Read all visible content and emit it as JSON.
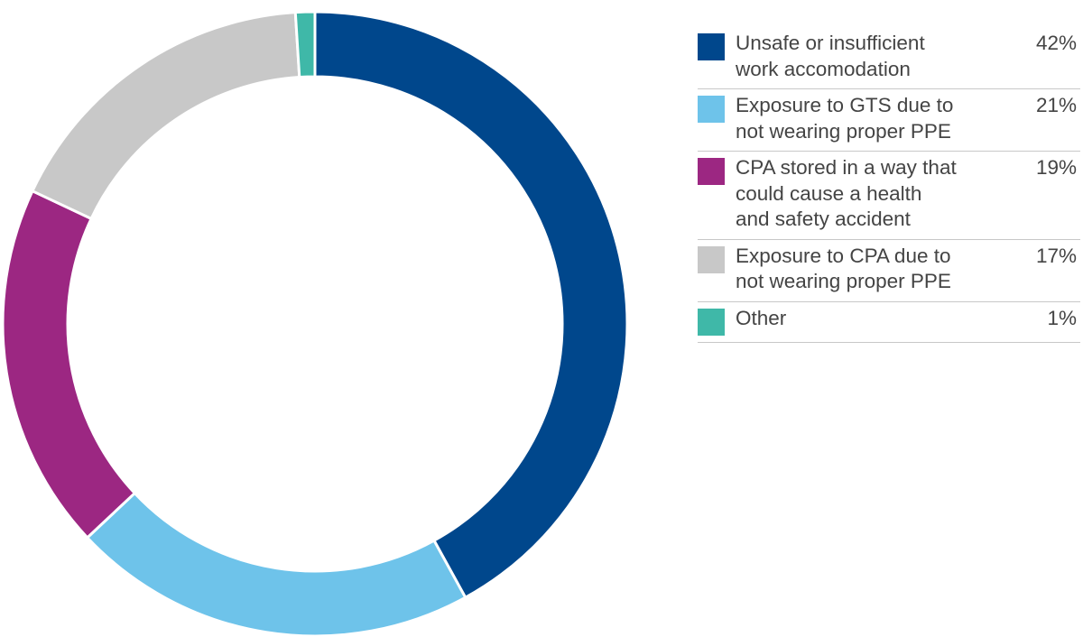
{
  "chart_data": {
    "type": "donut",
    "categories": [
      "Unsafe or insufficient\nwork accomodation",
      "Exposure to GTS due to\nnot wearing proper PPE",
      "CPA stored in a way that\ncould cause a health\nand safety accident",
      "Exposure to CPA due to\nnot wearing proper PPE",
      "Other"
    ],
    "values": [
      42,
      21,
      19,
      17,
      1
    ],
    "value_labels": [
      "42%",
      "21%",
      "19%",
      "17%",
      "1%"
    ],
    "colors": [
      "#00478c",
      "#6ec3ea",
      "#9c2782",
      "#c8c8c8",
      "#3fb8a8"
    ],
    "legend": "right"
  }
}
